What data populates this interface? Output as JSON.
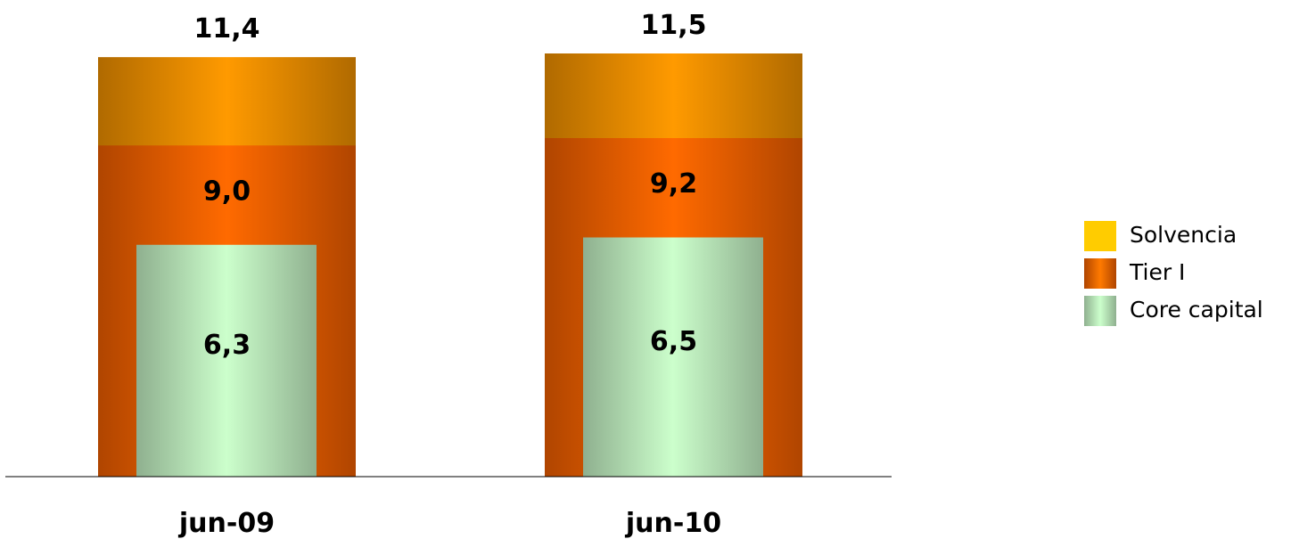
{
  "chart_data": {
    "type": "bar",
    "categories": [
      "jun-09",
      "jun-10"
    ],
    "series": [
      {
        "name": "Solvencia",
        "values": [
          11.4,
          11.5
        ],
        "labels": [
          "11,4",
          "11,5"
        ]
      },
      {
        "name": "Tier I",
        "values": [
          9.0,
          9.2
        ],
        "labels": [
          "9,0",
          "9,2"
        ]
      },
      {
        "name": "Core capital",
        "values": [
          6.3,
          6.5
        ],
        "labels": [
          "6,3",
          "6,5"
        ]
      }
    ],
    "ylim": [
      0,
      11.5
    ],
    "grid": false,
    "legend": "right"
  },
  "colors": {
    "solvencia": "#ff9a00",
    "solvencia_edge": "#b06a00",
    "tier1": "#ff6a00",
    "tier1_edge": "#b04500",
    "core": "#ccffcc",
    "core_edge": "#8fb08f",
    "legend_solvencia": "#ffcc00",
    "legend_tier1": "#ff7a00",
    "legend_core": "#ccffcc"
  },
  "legend": {
    "items": [
      {
        "label": "Solvencia",
        "swatch": "legend-swatch-solvencia"
      },
      {
        "label": "Tier I",
        "swatch": "legend-swatch-tier1"
      },
      {
        "label": "Core capital",
        "swatch": "legend-swatch-core"
      }
    ]
  }
}
